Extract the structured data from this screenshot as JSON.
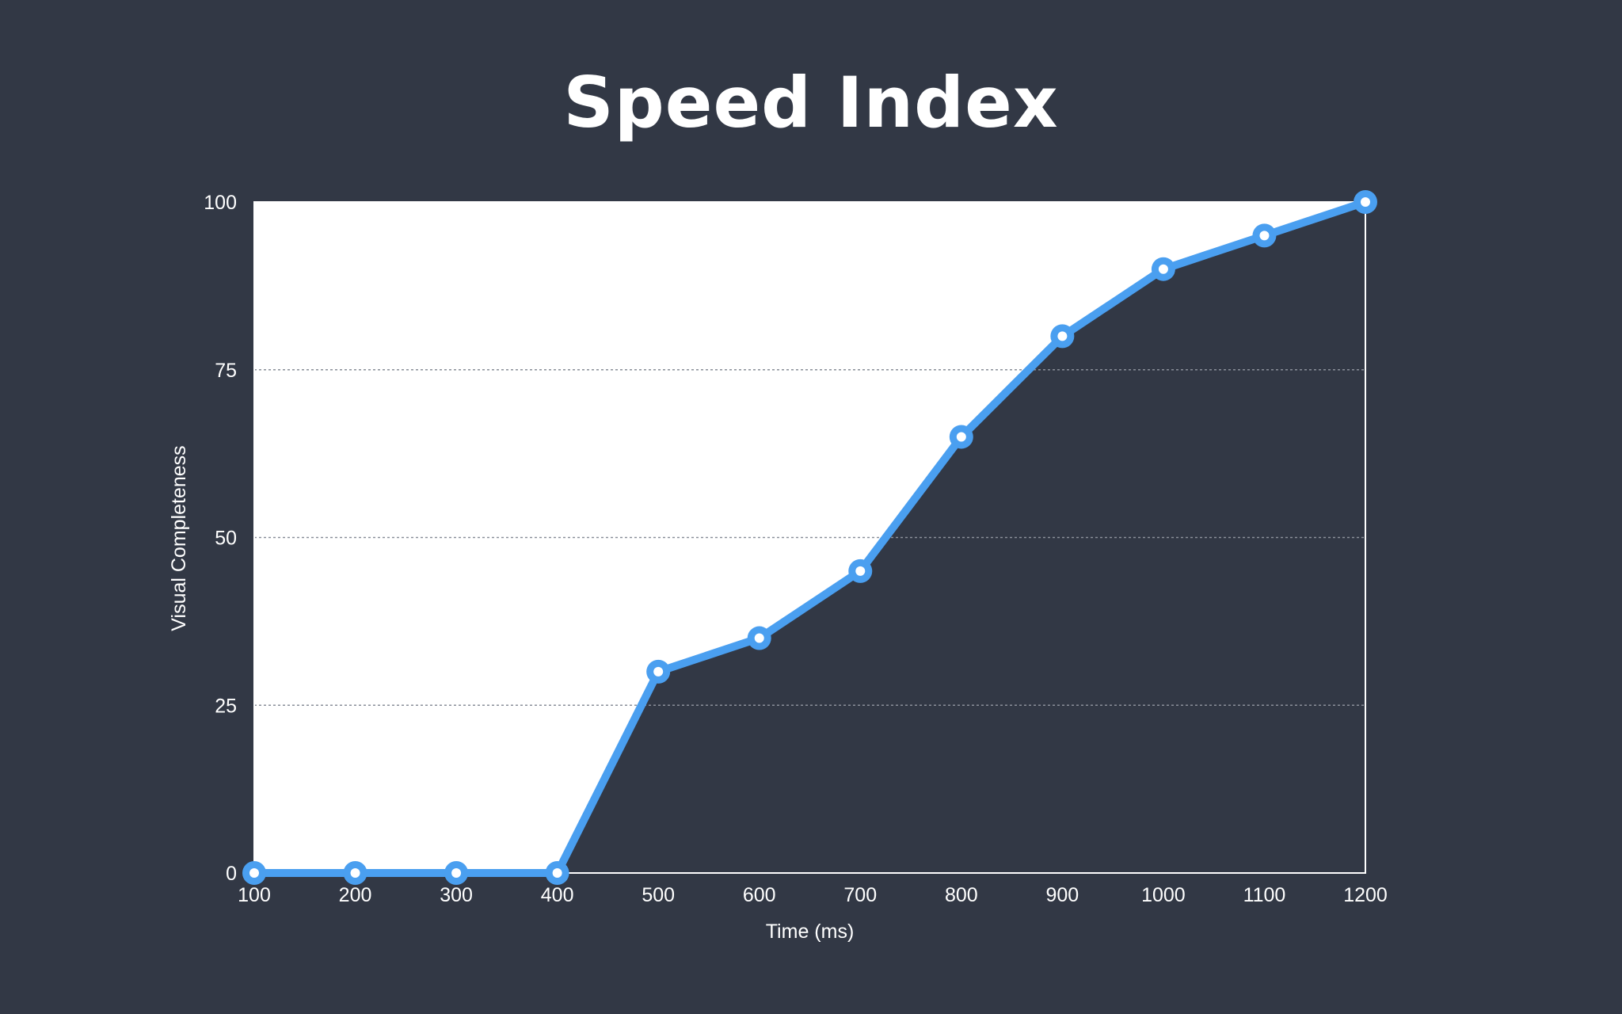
{
  "title": "Speed Index",
  "colors": {
    "background": "#323845",
    "plot_fill": "#ffffff",
    "line": "#4a9ff0",
    "grid": "#8a8f99",
    "text": "#ffffff"
  },
  "chart_data": {
    "type": "area",
    "title": "Speed Index",
    "xlabel": "Time (ms)",
    "ylabel": "Visual Completeness",
    "x": [
      100,
      200,
      300,
      400,
      500,
      600,
      700,
      800,
      900,
      1000,
      1100,
      1200
    ],
    "series": [
      {
        "values": [
          0,
          0,
          0,
          0,
          30,
          35,
          45,
          65,
          80,
          90,
          95,
          100
        ]
      }
    ],
    "xlim": [
      100,
      1200
    ],
    "ylim": [
      0,
      100
    ],
    "xticks": [
      "100",
      "200",
      "300",
      "400",
      "500",
      "600",
      "700",
      "800",
      "900",
      "1000",
      "1100",
      "1200"
    ],
    "yticks": [
      "0",
      "25",
      "50",
      "75",
      "100"
    ],
    "grid": "horizontal dotted",
    "legend": "none"
  }
}
